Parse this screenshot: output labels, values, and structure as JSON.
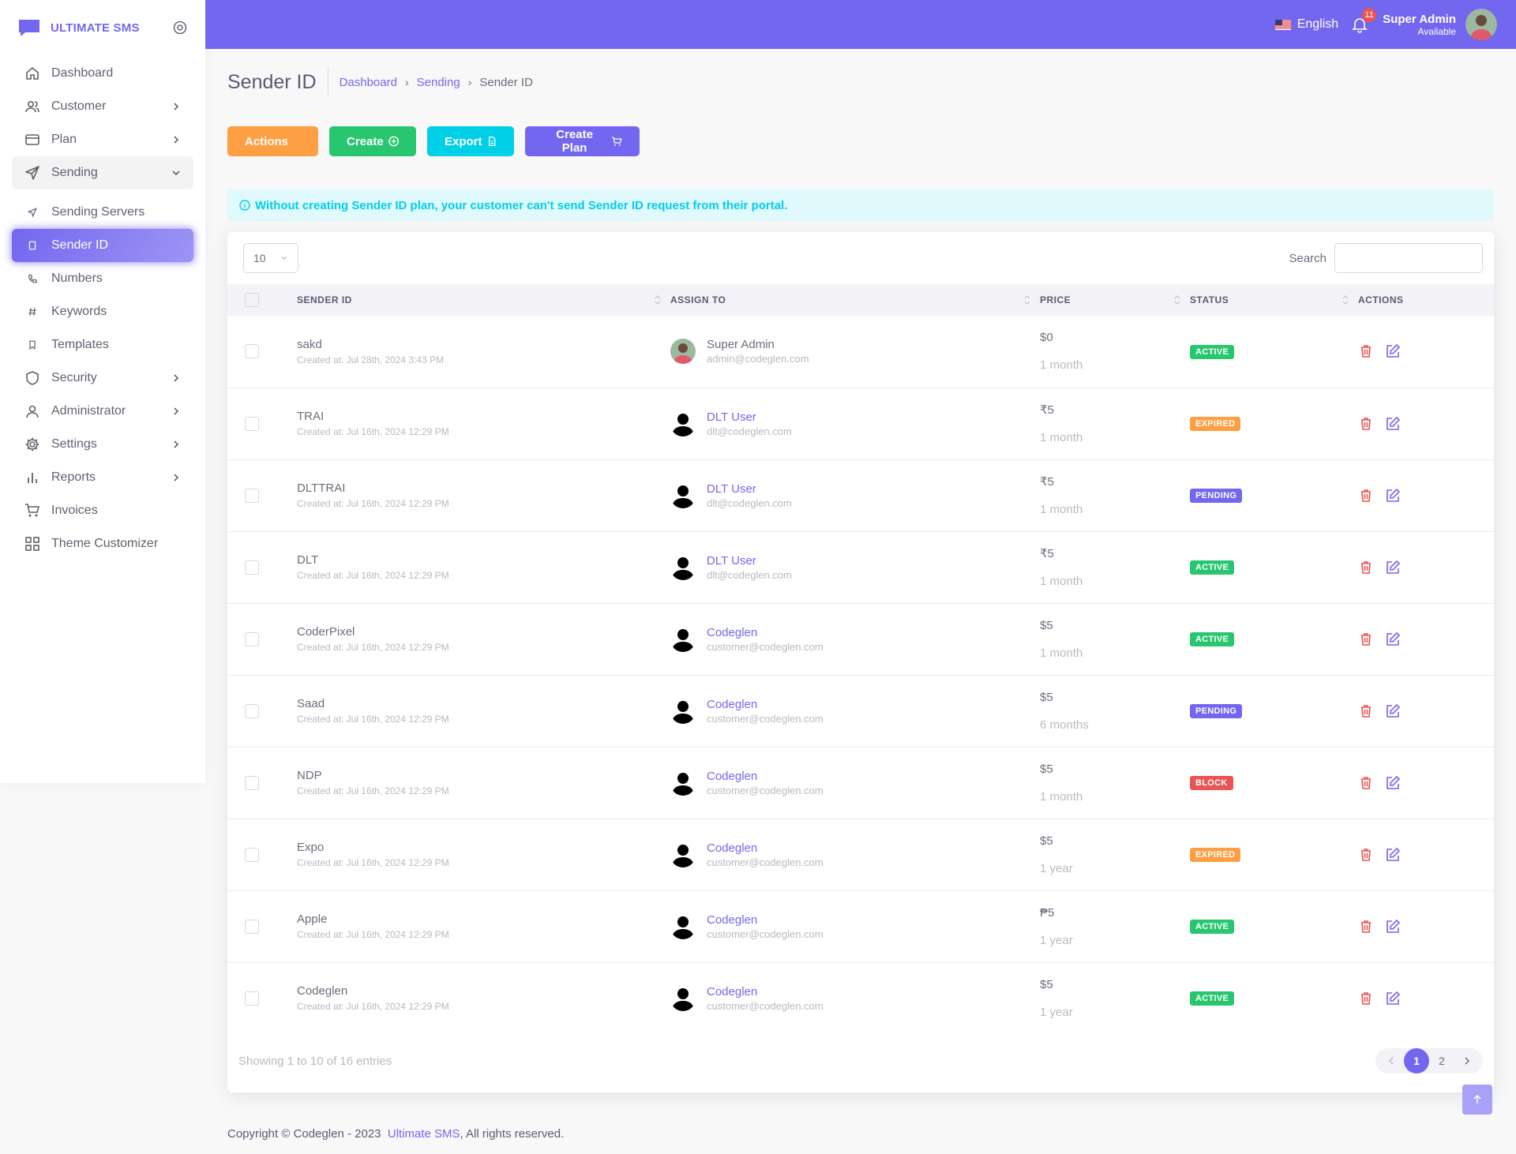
{
  "brand": {
    "name": "ULTIMATE SMS"
  },
  "sidebar": {
    "items": [
      {
        "label": "Dashboard"
      },
      {
        "label": "Customer"
      },
      {
        "label": "Plan"
      },
      {
        "label": "Sending"
      },
      {
        "label": "Sending Servers"
      },
      {
        "label": "Sender ID"
      },
      {
        "label": "Numbers"
      },
      {
        "label": "Keywords"
      },
      {
        "label": "Templates"
      },
      {
        "label": "Security"
      },
      {
        "label": "Administrator"
      },
      {
        "label": "Settings"
      },
      {
        "label": "Reports"
      },
      {
        "label": "Invoices"
      },
      {
        "label": "Theme Customizer"
      }
    ]
  },
  "topbar": {
    "language": "English",
    "notifications": "11",
    "user_name": "Super Admin",
    "user_status": "Available"
  },
  "page": {
    "title": "Sender ID",
    "breadcrumb": [
      "Dashboard",
      "Sending",
      "Sender ID"
    ]
  },
  "buttons": {
    "actions": "Actions",
    "create": "Create",
    "export": "Export",
    "create_plan": "Create Plan"
  },
  "alert": "Without creating Sender ID plan, your customer can't send Sender ID request from their portal.",
  "table": {
    "length": "10",
    "search_label": "Search",
    "columns": [
      "SENDER ID",
      "ASSIGN TO",
      "PRICE",
      "STATUS",
      "ACTIONS"
    ],
    "rows": [
      {
        "sender": "sakd",
        "created": "Created at: Jul 28th, 2024 3:43 PM",
        "user": "Super Admin",
        "email": "admin@codeglen.com",
        "price": "$0",
        "period": "1 month",
        "status": "ACTIVE"
      },
      {
        "sender": "TRAI",
        "created": "Created at: Jul 16th, 2024 12:29 PM",
        "user": "DLT User",
        "email": "dlt@codeglen.com",
        "price": "₹5",
        "period": "1 month",
        "status": "EXPIRED"
      },
      {
        "sender": "DLTTRAI",
        "created": "Created at: Jul 16th, 2024 12:29 PM",
        "user": "DLT User",
        "email": "dlt@codeglen.com",
        "price": "₹5",
        "period": "1 month",
        "status": "PENDING"
      },
      {
        "sender": "DLT",
        "created": "Created at: Jul 16th, 2024 12:29 PM",
        "user": "DLT User",
        "email": "dlt@codeglen.com",
        "price": "₹5",
        "period": "1 month",
        "status": "ACTIVE"
      },
      {
        "sender": "CoderPixel",
        "created": "Created at: Jul 16th, 2024 12:29 PM",
        "user": "Codeglen",
        "email": "customer@codeglen.com",
        "price": "$5",
        "period": "1 month",
        "status": "ACTIVE"
      },
      {
        "sender": "Saad",
        "created": "Created at: Jul 16th, 2024 12:29 PM",
        "user": "Codeglen",
        "email": "customer@codeglen.com",
        "price": "$5",
        "period": "6 months",
        "status": "PENDING"
      },
      {
        "sender": "NDP",
        "created": "Created at: Jul 16th, 2024 12:29 PM",
        "user": "Codeglen",
        "email": "customer@codeglen.com",
        "price": "$5",
        "period": "1 month",
        "status": "BLOCK"
      },
      {
        "sender": "Expo",
        "created": "Created at: Jul 16th, 2024 12:29 PM",
        "user": "Codeglen",
        "email": "customer@codeglen.com",
        "price": "$5",
        "period": "1 year",
        "status": "EXPIRED"
      },
      {
        "sender": "Apple",
        "created": "Created at: Jul 16th, 2024 12:29 PM",
        "user": "Codeglen",
        "email": "customer@codeglen.com",
        "price": "₱5",
        "period": "1 year",
        "status": "ACTIVE"
      },
      {
        "sender": "Codeglen",
        "created": "Created at: Jul 16th, 2024 12:29 PM",
        "user": "Codeglen",
        "email": "customer@codeglen.com",
        "price": "$5",
        "period": "1 year",
        "status": "ACTIVE"
      }
    ],
    "showing": "Showing 1 to 10 of 16 entries",
    "pages": [
      "1",
      "2"
    ]
  },
  "footer": {
    "prefix": "Copyright © Codeglen - 2023",
    "link": "Ultimate SMS",
    "suffix": ", All rights reserved."
  },
  "colors": {
    "primary": "#7367f0",
    "success": "#28c76f",
    "warning": "#ff9f43",
    "info": "#00cfe8",
    "danger": "#ea5455"
  }
}
